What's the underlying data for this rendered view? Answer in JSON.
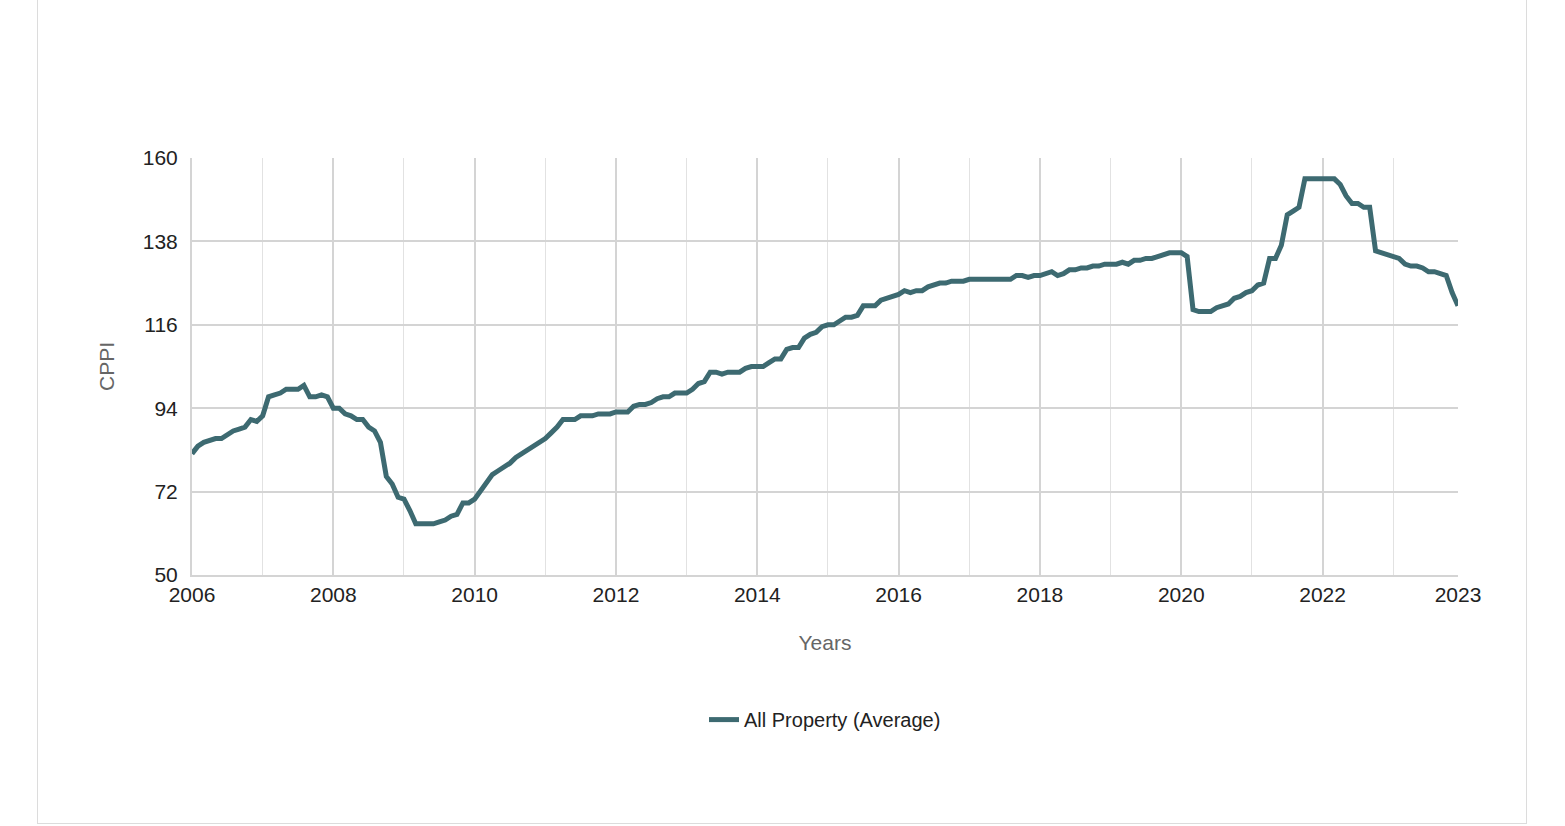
{
  "chart_data": {
    "type": "line",
    "x_label": "Years",
    "y_label": "CPPI",
    "categories": [
      "2006",
      null,
      null,
      null,
      null,
      null,
      null,
      null,
      null,
      null,
      null,
      null,
      null,
      null,
      null,
      null,
      null,
      null,
      null,
      null,
      null,
      null,
      null,
      null,
      "2008",
      null,
      null,
      null,
      null,
      null,
      null,
      null,
      null,
      null,
      null,
      null,
      null,
      null,
      null,
      null,
      null,
      null,
      null,
      null,
      null,
      null,
      null,
      null,
      "2010",
      null,
      null,
      null,
      null,
      null,
      null,
      null,
      null,
      null,
      null,
      null,
      null,
      null,
      null,
      null,
      null,
      null,
      null,
      null,
      null,
      null,
      null,
      null,
      "2012",
      null,
      null,
      null,
      null,
      null,
      null,
      null,
      null,
      null,
      null,
      null,
      null,
      null,
      null,
      null,
      null,
      null,
      null,
      null,
      null,
      null,
      null,
      null,
      "2014",
      null,
      null,
      null,
      null,
      null,
      null,
      null,
      null,
      null,
      null,
      null,
      null,
      null,
      null,
      null,
      null,
      null,
      null,
      null,
      null,
      null,
      null,
      null,
      "2016",
      null,
      null,
      null,
      null,
      null,
      null,
      null,
      null,
      null,
      null,
      null,
      null,
      null,
      null,
      null,
      null,
      null,
      null,
      null,
      null,
      null,
      null,
      null,
      "2018",
      null,
      null,
      null,
      null,
      null,
      null,
      null,
      null,
      null,
      null,
      null,
      null,
      null,
      null,
      null,
      null,
      null,
      null,
      null,
      null,
      null,
      null,
      null,
      "2020",
      null,
      null,
      null,
      null,
      null,
      null,
      null,
      null,
      null,
      null,
      null,
      null,
      null,
      null,
      null,
      null,
      null,
      null,
      null,
      null,
      null,
      null,
      null,
      "2022",
      null,
      null,
      null,
      null,
      null,
      null,
      null,
      null,
      null,
      null,
      null,
      null,
      null,
      null,
      null,
      null,
      null,
      null,
      null,
      null,
      null,
      null,
      "2023"
    ],
    "series": [
      {
        "name": "All Property (Average)",
        "color": "#3d6a71",
        "values": [
          82,
          84,
          85,
          85.5,
          86,
          86,
          87,
          88,
          88.5,
          89,
          91,
          90.5,
          92,
          97,
          97.5,
          98,
          99,
          99,
          99,
          100,
          97,
          97,
          97.5,
          97,
          94,
          94,
          92.5,
          92,
          91,
          91,
          89,
          88,
          85,
          76,
          74,
          70.5,
          70,
          67,
          63.5,
          63.5,
          63.5,
          63.5,
          64,
          64.5,
          65.5,
          66,
          69,
          69,
          70,
          72,
          74,
          76.5,
          77.5,
          78.5,
          79.5,
          81,
          82,
          83,
          84,
          85,
          86,
          87.5,
          89,
          91,
          91,
          91,
          92,
          92,
          92,
          92.5,
          92.5,
          92.5,
          93,
          93,
          93,
          94.5,
          95,
          95,
          95.5,
          96.5,
          97,
          97,
          98,
          98,
          98,
          99,
          100.5,
          101,
          103.5,
          103.5,
          103,
          103.5,
          103.5,
          103.5,
          104.5,
          105,
          105,
          105,
          106,
          107,
          107,
          109.5,
          110,
          110,
          112.5,
          113.5,
          114,
          115.5,
          116,
          116,
          117,
          118,
          118,
          118.5,
          121,
          121,
          121,
          122.5,
          123,
          123.5,
          124,
          125,
          124.5,
          125,
          125,
          126,
          126.5,
          127,
          127,
          127.5,
          127.5,
          127.5,
          128,
          128,
          128,
          128,
          128,
          128,
          128,
          128,
          129,
          129,
          128.5,
          129,
          129,
          129.5,
          130,
          129,
          129.5,
          130.5,
          130.5,
          131,
          131,
          131.5,
          131.5,
          132,
          132,
          132,
          132.5,
          132,
          133,
          133,
          133.5,
          133.5,
          134,
          134.5,
          135,
          135,
          135,
          134,
          120,
          119.5,
          119.5,
          119.5,
          120.5,
          121,
          121.5,
          123,
          123.5,
          124.5,
          125,
          126.5,
          127,
          133.5,
          133.5,
          137,
          145,
          146,
          147,
          154.5,
          154.5,
          154.5,
          154.5,
          154.5,
          154.5,
          153,
          150,
          148,
          148,
          147,
          147,
          135.5,
          135,
          134.5,
          134,
          133.5,
          132,
          131.5,
          131.5,
          131,
          130,
          130,
          129.5,
          129,
          124.5,
          121
        ]
      }
    ],
    "ylim": [
      50,
      160
    ],
    "yticks": [
      50,
      72,
      94,
      116,
      138,
      160
    ],
    "grid": true,
    "legend": "bottom"
  }
}
